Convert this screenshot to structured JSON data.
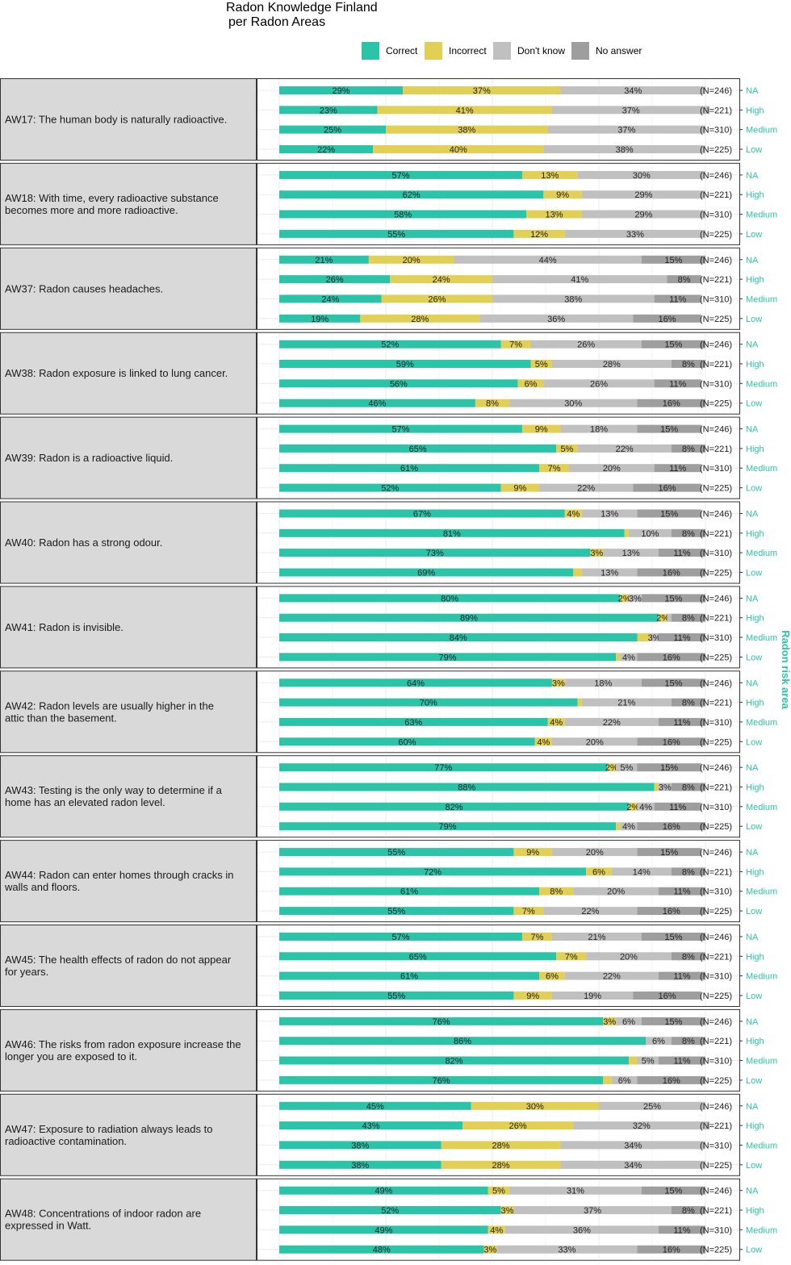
{
  "chart_data": {
    "type": "bar",
    "orientation": "horizontal-stacked",
    "title_lines": [
      "Radon Knowledge Finland",
      "per Radon Areas"
    ],
    "facet_label": "Radon risk area",
    "legend": [
      {
        "name": "Correct",
        "color": "#2bc4a9"
      },
      {
        "name": "Incorrect",
        "color": "#e2cf55"
      },
      {
        "name": "Don't know",
        "color": "#c0c0c0"
      },
      {
        "name": "No answer",
        "color": "#9e9e9e"
      }
    ],
    "legend_placement": "top",
    "grid": true,
    "xlim": [
      0,
      100
    ],
    "area_labels": [
      "NA",
      "High",
      "Medium",
      "Low"
    ],
    "area_n": [
      "(N=246)",
      "(N=221)",
      "(N=310)",
      "(N=225)"
    ],
    "colors": {
      "area_label": "#2bc4a9",
      "panel_bg": "#d9d9d9",
      "grid": "#ebebeb"
    },
    "questions": [
      {
        "label": [
          "AW17: The human body is naturally radioactive."
        ],
        "values": [
          [
            29,
            37,
            34,
            0
          ],
          [
            23,
            41,
            37,
            0
          ],
          [
            25,
            38,
            37,
            0
          ],
          [
            22,
            40,
            38,
            0
          ]
        ],
        "labels": [
          [
            "29%",
            "37%",
            "34%",
            ""
          ],
          [
            "23%",
            "41%",
            "37%",
            ""
          ],
          [
            "25%",
            "38%",
            "37%",
            ""
          ],
          [
            "22%",
            "40%",
            "38%",
            ""
          ]
        ]
      },
      {
        "label": [
          "AW18: With time, every radioactive substance",
          "becomes more and more radioactive."
        ],
        "values": [
          [
            57,
            13,
            30,
            0
          ],
          [
            62,
            9,
            29,
            0
          ],
          [
            58,
            13,
            29,
            0
          ],
          [
            55,
            12,
            33,
            0
          ]
        ],
        "labels": [
          [
            "57%",
            "13%",
            "30%",
            ""
          ],
          [
            "62%",
            "9%",
            "29%",
            ""
          ],
          [
            "58%",
            "13%",
            "29%",
            ""
          ],
          [
            "55%",
            "12%",
            "33%",
            ""
          ]
        ]
      },
      {
        "label": [
          "AW37: Radon causes headaches."
        ],
        "values": [
          [
            21,
            20,
            44,
            15
          ],
          [
            26,
            24,
            41,
            8
          ],
          [
            24,
            26,
            38,
            11
          ],
          [
            19,
            28,
            36,
            16
          ]
        ],
        "labels": [
          [
            "21%",
            "20%",
            "44%",
            "15%"
          ],
          [
            "26%",
            "24%",
            "41%",
            "8%"
          ],
          [
            "24%",
            "26%",
            "38%",
            "11%"
          ],
          [
            "19%",
            "28%",
            "36%",
            "16%"
          ]
        ]
      },
      {
        "label": [
          "AW38: Radon exposure is linked to lung cancer."
        ],
        "values": [
          [
            52,
            7,
            26,
            15
          ],
          [
            59,
            5,
            28,
            8
          ],
          [
            56,
            6,
            26,
            11
          ],
          [
            46,
            8,
            30,
            16
          ]
        ],
        "labels": [
          [
            "52%",
            "7%",
            "26%",
            "15%"
          ],
          [
            "59%",
            "5%",
            "28%",
            "8%"
          ],
          [
            "56%",
            "6%",
            "26%",
            "11%"
          ],
          [
            "46%",
            "8%",
            "30%",
            "16%"
          ]
        ]
      },
      {
        "label": [
          "AW39: Radon is a radioactive liquid."
        ],
        "values": [
          [
            57,
            9,
            18,
            15
          ],
          [
            65,
            5,
            22,
            8
          ],
          [
            61,
            7,
            20,
            11
          ],
          [
            52,
            9,
            22,
            16
          ]
        ],
        "labels": [
          [
            "57%",
            "9%",
            "18%",
            "15%"
          ],
          [
            "65%",
            "5%",
            "22%",
            "8%"
          ],
          [
            "61%",
            "7%",
            "20%",
            "11%"
          ],
          [
            "52%",
            "9%",
            "22%",
            "16%"
          ]
        ]
      },
      {
        "label": [
          "AW40: Radon has a strong odour."
        ],
        "values": [
          [
            67,
            4,
            13,
            15
          ],
          [
            81,
            1,
            10,
            8
          ],
          [
            73,
            3,
            13,
            11
          ],
          [
            69,
            2,
            13,
            16
          ]
        ],
        "labels": [
          [
            "67%",
            "4%",
            "13%",
            "15%"
          ],
          [
            "81%",
            "",
            "10%",
            "8%"
          ],
          [
            "73%",
            "3%",
            "13%",
            "11%"
          ],
          [
            "69%",
            "",
            "13%",
            "16%"
          ]
        ]
      },
      {
        "label": [
          "AW41: Radon is invisible."
        ],
        "values": [
          [
            80,
            2,
            3,
            15
          ],
          [
            89,
            2,
            1,
            8
          ],
          [
            84,
            3,
            2,
            11
          ],
          [
            79,
            1,
            4,
            16
          ]
        ],
        "labels": [
          [
            "80%",
            "2%",
            "3%",
            "15%"
          ],
          [
            "89%",
            "2%",
            "",
            "8%"
          ],
          [
            "84%",
            "",
            "3%",
            "11%"
          ],
          [
            "79%",
            "",
            "4%",
            "16%"
          ]
        ]
      },
      {
        "label": [
          "AW42: Radon levels are usually higher in the",
          "attic than the basement."
        ],
        "values": [
          [
            64,
            3,
            18,
            15
          ],
          [
            70,
            1,
            21,
            8
          ],
          [
            63,
            4,
            22,
            11
          ],
          [
            60,
            4,
            20,
            16
          ]
        ],
        "labels": [
          [
            "64%",
            "3%",
            "18%",
            "15%"
          ],
          [
            "70%",
            "",
            "21%",
            "8%"
          ],
          [
            "63%",
            "4%",
            "22%",
            "11%"
          ],
          [
            "60%",
            "4%",
            "20%",
            "16%"
          ]
        ]
      },
      {
        "label": [
          "AW43: Testing is the only way to determine if a",
          "home has an elevated radon level."
        ],
        "values": [
          [
            77,
            2,
            5,
            15
          ],
          [
            88,
            1,
            3,
            8
          ],
          [
            82,
            2,
            4,
            11
          ],
          [
            79,
            1,
            4,
            16
          ]
        ],
        "labels": [
          [
            "77%",
            "2%",
            "5%",
            "15%"
          ],
          [
            "88%",
            "",
            "3%",
            "8%"
          ],
          [
            "82%",
            "2%",
            "4%",
            "11%"
          ],
          [
            "79%",
            "",
            "4%",
            "16%"
          ]
        ]
      },
      {
        "label": [
          "AW44: Radon can enter homes through cracks in",
          "walls and floors."
        ],
        "values": [
          [
            55,
            9,
            20,
            15
          ],
          [
            72,
            6,
            14,
            8
          ],
          [
            61,
            8,
            20,
            11
          ],
          [
            55,
            7,
            22,
            16
          ]
        ],
        "labels": [
          [
            "55%",
            "9%",
            "20%",
            "15%"
          ],
          [
            "72%",
            "6%",
            "14%",
            "8%"
          ],
          [
            "61%",
            "8%",
            "20%",
            "11%"
          ],
          [
            "55%",
            "7%",
            "22%",
            "16%"
          ]
        ]
      },
      {
        "label": [
          "AW45: The health effects of radon do not appear",
          "for years."
        ],
        "values": [
          [
            57,
            7,
            21,
            15
          ],
          [
            65,
            7,
            20,
            8
          ],
          [
            61,
            6,
            22,
            11
          ],
          [
            55,
            9,
            19,
            16
          ]
        ],
        "labels": [
          [
            "57%",
            "7%",
            "21%",
            "15%"
          ],
          [
            "65%",
            "7%",
            "20%",
            "8%"
          ],
          [
            "61%",
            "6%",
            "22%",
            "11%"
          ],
          [
            "55%",
            "9%",
            "19%",
            "16%"
          ]
        ]
      },
      {
        "label": [
          "AW46: The risks from radon exposure increase the",
          "longer you are exposed to it."
        ],
        "values": [
          [
            76,
            3,
            6,
            15
          ],
          [
            86,
            0,
            6,
            8
          ],
          [
            82,
            2,
            5,
            11
          ],
          [
            76,
            2,
            6,
            16
          ]
        ],
        "labels": [
          [
            "76%",
            "3%",
            "6%",
            "15%"
          ],
          [
            "86%",
            "",
            "6%",
            "8%"
          ],
          [
            "82%",
            "",
            "5%",
            "11%"
          ],
          [
            "76%",
            "",
            "6%",
            "16%"
          ]
        ]
      },
      {
        "label": [
          "AW47: Exposure to radiation always leads to",
          "radioactive contamination."
        ],
        "values": [
          [
            45,
            30,
            25,
            0
          ],
          [
            43,
            26,
            32,
            0
          ],
          [
            38,
            28,
            34,
            0
          ],
          [
            38,
            28,
            34,
            0
          ]
        ],
        "labels": [
          [
            "45%",
            "30%",
            "25%",
            ""
          ],
          [
            "43%",
            "26%",
            "32%",
            ""
          ],
          [
            "38%",
            "28%",
            "34%",
            ""
          ],
          [
            "38%",
            "28%",
            "34%",
            ""
          ]
        ]
      },
      {
        "label": [
          "AW48: Concentrations of indoor radon are",
          "expressed in Watt."
        ],
        "values": [
          [
            49,
            5,
            31,
            15
          ],
          [
            52,
            3,
            37,
            8
          ],
          [
            49,
            4,
            36,
            11
          ],
          [
            48,
            3,
            33,
            16
          ]
        ],
        "labels": [
          [
            "49%",
            "5%",
            "31%",
            "15%"
          ],
          [
            "52%",
            "3%",
            "37%",
            "8%"
          ],
          [
            "49%",
            "4%",
            "36%",
            "11%"
          ],
          [
            "48%",
            "3%",
            "33%",
            "16%"
          ]
        ]
      }
    ]
  }
}
